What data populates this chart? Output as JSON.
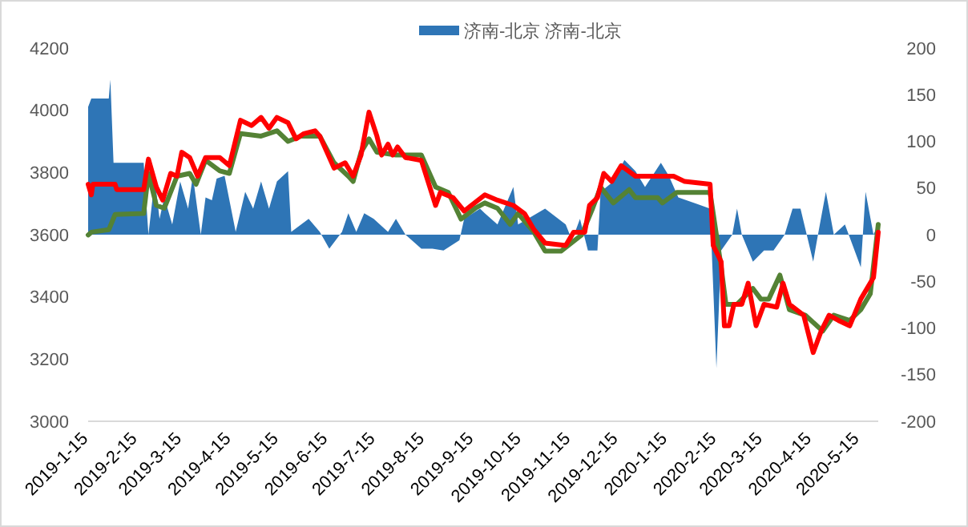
{
  "chart_data": {
    "type": "line",
    "legend": "top",
    "xlim": [
      "2019-01-15",
      "2020-05-27"
    ],
    "xticks": [
      {
        "value": "2019-01-15",
        "label": "2019-1-15"
      },
      {
        "value": "2019-02-15",
        "label": "2019-2-15"
      },
      {
        "value": "2019-03-15",
        "label": "2019-3-15"
      },
      {
        "value": "2019-04-15",
        "label": "2019-4-15"
      },
      {
        "value": "2019-05-15",
        "label": "2019-5-15"
      },
      {
        "value": "2019-06-15",
        "label": "2019-6-15"
      },
      {
        "value": "2019-07-15",
        "label": "2019-7-15"
      },
      {
        "value": "2019-08-15",
        "label": "2019-8-15"
      },
      {
        "value": "2019-09-15",
        "label": "2019-9-15"
      },
      {
        "value": "2019-10-15",
        "label": "2019-10-15"
      },
      {
        "value": "2019-11-15",
        "label": "2019-11-15"
      },
      {
        "value": "2019-12-15",
        "label": "2019-12-15"
      },
      {
        "value": "2020-01-15",
        "label": "2020-1-15"
      },
      {
        "value": "2020-02-15",
        "label": "2020-2-15"
      },
      {
        "value": "2020-03-15",
        "label": "2020-3-15"
      },
      {
        "value": "2020-04-15",
        "label": "2020-4-15"
      },
      {
        "value": "2020-05-15",
        "label": "2020-5-15"
      }
    ],
    "ylim": [
      3000,
      4200
    ],
    "yticks": [
      3000,
      3200,
      3400,
      3600,
      3800,
      4000,
      4200
    ],
    "y2lim": [
      -200,
      200
    ],
    "y2ticks": [
      -200,
      -150,
      -100,
      -50,
      0,
      50,
      100,
      150,
      200
    ],
    "series": [
      {
        "name": "济南-北京 济南-北京",
        "type": "area",
        "axis": "y2",
        "color": "#2e75b6",
        "x": [
          "2019-01-15",
          "2019-01-17",
          "2019-01-28",
          "2019-01-29",
          "2019-01-31",
          "2019-02-19",
          "2019-02-22",
          "2019-02-26",
          "2019-03-01",
          "2019-03-04",
          "2019-03-09",
          "2019-03-14",
          "2019-03-19",
          "2019-03-22",
          "2019-03-27",
          "2019-03-30",
          "2019-04-03",
          "2019-04-06",
          "2019-04-11",
          "2019-04-18",
          "2019-04-24",
          "2019-04-29",
          "2019-05-04",
          "2019-05-09",
          "2019-05-14",
          "2019-05-21",
          "2019-05-23",
          "2019-06-03",
          "2019-06-10",
          "2019-06-16",
          "2019-06-24",
          "2019-06-28",
          "2019-07-03",
          "2019-07-08",
          "2019-07-14",
          "2019-07-23",
          "2019-07-28",
          "2019-08-03",
          "2019-08-13",
          "2019-08-20",
          "2019-08-27",
          "2019-09-06",
          "2019-09-09",
          "2019-09-19",
          "2019-09-22",
          "2019-09-30",
          "2019-10-10",
          "2019-10-13",
          "2019-10-30",
          "2019-11-12",
          "2019-11-16",
          "2019-11-21",
          "2019-11-26",
          "2019-12-02",
          "2019-12-04",
          "2019-12-12",
          "2019-12-19",
          "2019-12-26",
          "2020-01-01",
          "2020-01-11",
          "2020-01-16",
          "2020-01-22",
          "2020-02-11",
          "2020-02-15",
          "2020-02-18",
          "2020-02-25",
          "2020-02-28",
          "2020-03-02",
          "2020-03-09",
          "2020-03-16",
          "2020-03-22",
          "2020-03-29",
          "2020-04-03",
          "2020-04-08",
          "2020-04-16",
          "2020-04-19",
          "2020-04-24",
          "2020-04-29",
          "2020-05-06",
          "2020-05-16",
          "2020-05-19",
          "2020-05-24",
          "2020-05-27"
        ],
        "values": [
          137,
          146,
          146,
          166,
          77,
          77,
          0,
          60,
          17,
          40,
          11,
          57,
          28,
          63,
          0,
          40,
          37,
          60,
          63,
          3,
          46,
          28,
          57,
          28,
          57,
          68,
          3,
          17,
          3,
          -15,
          3,
          23,
          3,
          23,
          17,
          3,
          17,
          0,
          -15,
          -15,
          -17,
          -6,
          17,
          28,
          23,
          11,
          51,
          11,
          28,
          11,
          -6,
          17,
          -17,
          -17,
          46,
          57,
          80,
          68,
          51,
          77,
          63,
          40,
          28,
          -143,
          -17,
          0,
          28,
          0,
          -29,
          -17,
          -17,
          0,
          28,
          28,
          -29,
          0,
          46,
          0,
          11,
          -35,
          46,
          0,
          11
        ]
      },
      {
        "color": "#548235",
        "x": [
          "2019-01-15",
          "2019-01-17",
          "2019-01-28",
          "2019-02-01",
          "2019-02-19",
          "2019-02-22",
          "2019-02-27",
          "2019-03-04",
          "2019-03-12",
          "2019-03-20",
          "2019-03-24",
          "2019-03-30",
          "2019-04-08",
          "2019-04-14",
          "2019-04-21",
          "2019-05-04",
          "2019-05-14",
          "2019-05-21",
          "2019-05-29",
          "2019-06-10",
          "2019-06-19",
          "2019-06-28",
          "2019-07-01",
          "2019-07-06",
          "2019-07-11",
          "2019-07-16",
          "2019-07-28",
          "2019-08-13",
          "2019-08-22",
          "2019-08-30",
          "2019-09-07",
          "2019-09-16",
          "2019-09-22",
          "2019-09-30",
          "2019-10-08",
          "2019-10-13",
          "2019-10-23",
          "2019-10-30",
          "2019-11-09",
          "2019-11-22",
          "2019-11-29",
          "2019-12-04",
          "2019-12-12",
          "2019-12-22",
          "2019-12-26",
          "2020-01-09",
          "2020-01-12",
          "2020-01-21",
          "2020-02-11",
          "2020-02-18",
          "2020-02-21",
          "2020-02-28",
          "2020-03-09",
          "2020-03-14",
          "2020-03-19",
          "2020-03-26",
          "2020-04-01",
          "2020-04-11",
          "2020-04-22",
          "2020-04-29",
          "2020-05-09",
          "2020-05-16",
          "2020-05-22",
          "2020-05-27"
        ],
        "values": [
          3599,
          3608,
          3616,
          3665,
          3668,
          3797,
          3694,
          3685,
          3788,
          3797,
          3762,
          3839,
          3805,
          3797,
          3925,
          3917,
          3934,
          3900,
          3917,
          3917,
          3831,
          3788,
          3771,
          3865,
          3908,
          3865,
          3856,
          3856,
          3753,
          3736,
          3650,
          3685,
          3702,
          3685,
          3633,
          3668,
          3608,
          3547,
          3547,
          3599,
          3685,
          3753,
          3702,
          3745,
          3719,
          3719,
          3702,
          3736,
          3736,
          3496,
          3376,
          3376,
          3427,
          3393,
          3393,
          3470,
          3359,
          3341,
          3290,
          3341,
          3324,
          3359,
          3410,
          3633
        ]
      },
      {
        "color": "#ff0000",
        "x": [
          "2019-01-15",
          "2019-01-17",
          "2019-01-18",
          "2019-02-01",
          "2019-02-02",
          "2019-02-19",
          "2019-02-22",
          "2019-02-27",
          "2019-03-03",
          "2019-03-08",
          "2019-03-12",
          "2019-03-15",
          "2019-03-20",
          "2019-03-25",
          "2019-03-30",
          "2019-04-08",
          "2019-04-14",
          "2019-04-21",
          "2019-04-28",
          "2019-05-04",
          "2019-05-09",
          "2019-05-14",
          "2019-05-21",
          "2019-05-26",
          "2019-05-31",
          "2019-06-07",
          "2019-06-10",
          "2019-06-19",
          "2019-06-26",
          "2019-07-01",
          "2019-07-06",
          "2019-07-11",
          "2019-07-16",
          "2019-07-19",
          "2019-07-23",
          "2019-07-26",
          "2019-07-29",
          "2019-08-03",
          "2019-08-13",
          "2019-08-22",
          "2019-08-25",
          "2019-09-02",
          "2019-09-09",
          "2019-09-22",
          "2019-09-30",
          "2019-10-10",
          "2019-10-17",
          "2019-10-23",
          "2019-10-30",
          "2019-11-12",
          "2019-11-17",
          "2019-11-24",
          "2019-11-27",
          "2019-12-02",
          "2019-12-06",
          "2019-12-11",
          "2019-12-17",
          "2019-12-26",
          "2020-01-19",
          "2020-01-26",
          "2020-02-11",
          "2020-02-13",
          "2020-02-18",
          "2020-02-20",
          "2020-02-23",
          "2020-02-26",
          "2020-03-02",
          "2020-03-06",
          "2020-03-11",
          "2020-03-16",
          "2020-03-24",
          "2020-03-28",
          "2020-04-01",
          "2020-04-10",
          "2020-04-16",
          "2020-04-21",
          "2020-04-26",
          "2020-05-02",
          "2020-05-09",
          "2020-05-16",
          "2020-05-24",
          "2020-05-27"
        ],
        "values": [
          3762,
          3728,
          3762,
          3762,
          3745,
          3745,
          3843,
          3753,
          3711,
          3797,
          3788,
          3865,
          3848,
          3788,
          3848,
          3848,
          3822,
          3968,
          3951,
          3977,
          3942,
          3977,
          3960,
          3908,
          3925,
          3934,
          3917,
          3814,
          3831,
          3788,
          3856,
          3994,
          3917,
          3856,
          3891,
          3856,
          3882,
          3848,
          3839,
          3694,
          3736,
          3719,
          3676,
          3728,
          3711,
          3694,
          3668,
          3616,
          3573,
          3565,
          3608,
          3608,
          3694,
          3719,
          3797,
          3771,
          3822,
          3788,
          3788,
          3771,
          3762,
          3565,
          3513,
          3307,
          3307,
          3376,
          3376,
          3444,
          3307,
          3376,
          3367,
          3444,
          3376,
          3341,
          3221,
          3290,
          3341,
          3324,
          3307,
          3393,
          3462,
          3608
        ]
      }
    ]
  }
}
